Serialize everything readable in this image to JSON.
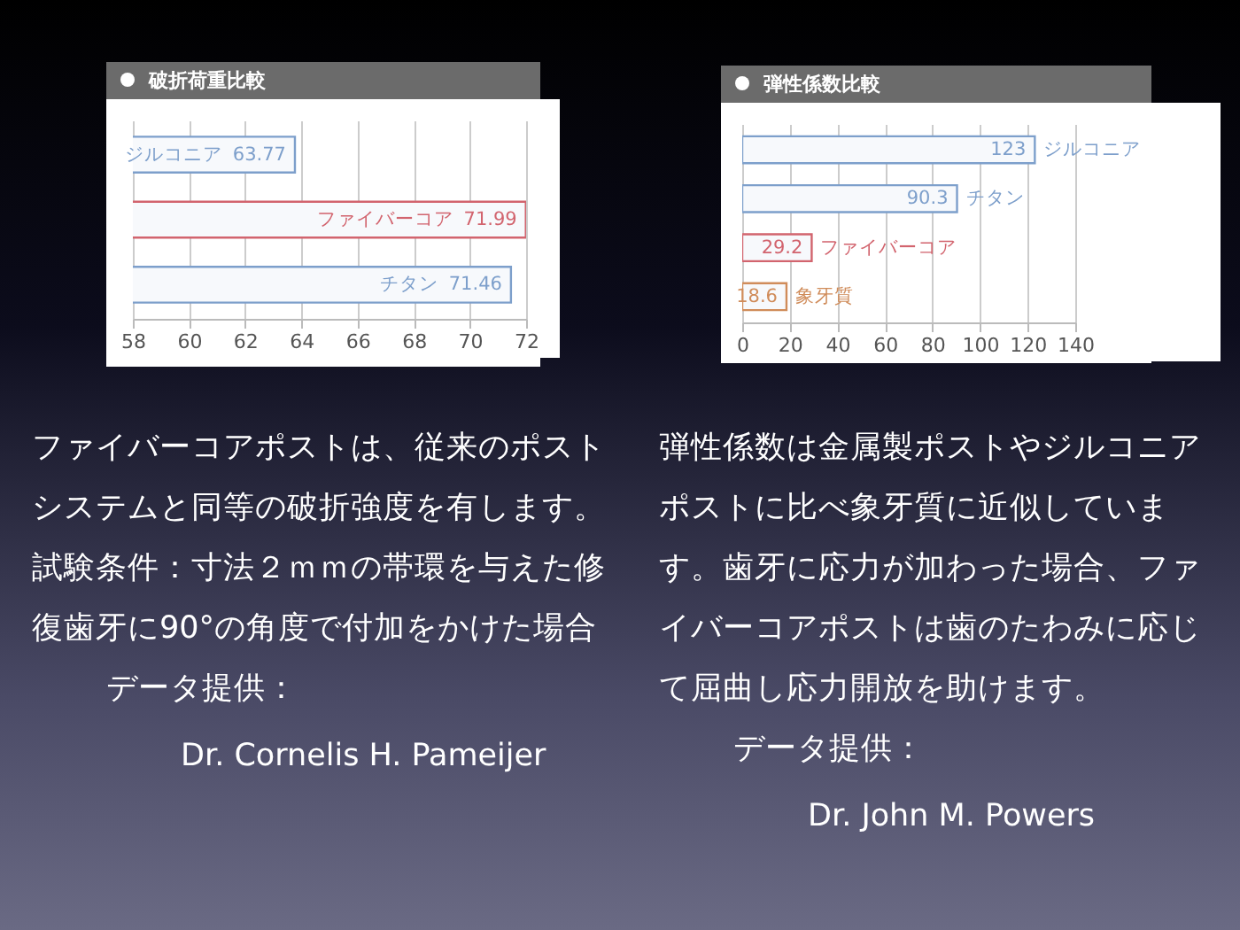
{
  "chart_data": [
    {
      "type": "bar",
      "orientation": "horizontal",
      "title": "破折荷重比較",
      "categories": [
        "ジルコニア",
        "ファイバーコア",
        "チタン"
      ],
      "values": [
        63.77,
        71.99,
        71.46
      ],
      "colors": [
        "#7d9fcb",
        "#d2646e",
        "#7d9fcb"
      ],
      "xlim": [
        58,
        72
      ],
      "xticks": [
        58,
        60,
        62,
        64,
        66,
        68,
        70,
        72
      ],
      "grid": "x",
      "data_labels": true,
      "tick_labels": "x",
      "annotations": [
        "ファイバーコアポストは、従来のポストシステムと同等の破折強度を有します。試験条件：寸法２ｍｍの帯環を与えた修復歯牙に90°の角度で付加をかけた場合",
        "データ提供：",
        "Dr. Cornelis H. Pameijer"
      ]
    },
    {
      "type": "bar",
      "orientation": "horizontal",
      "title": "弾性係数比較",
      "categories": [
        "ジルコニア",
        "チタン",
        "ファイバーコア",
        "象牙質"
      ],
      "values": [
        123,
        90.3,
        29.2,
        18.6
      ],
      "colors": [
        "#7d9fcb",
        "#7d9fcb",
        "#d2646e",
        "#d08c5a"
      ],
      "xlim": [
        0,
        140
      ],
      "xticks": [
        0,
        20,
        40,
        60,
        80,
        100,
        120,
        140
      ],
      "grid": "x",
      "data_labels": true,
      "tick_labels": "x",
      "annotations": [
        "弾性係数は金属製ポストやジルコニアポストに比べ象牙質に近似しています。歯牙に応力が加わった場合、ファイバーコアポストは歯のたわみに応じて屈曲し応力開放を助けます。",
        "データ提供：",
        "Dr. John M. Powers"
      ]
    }
  ]
}
